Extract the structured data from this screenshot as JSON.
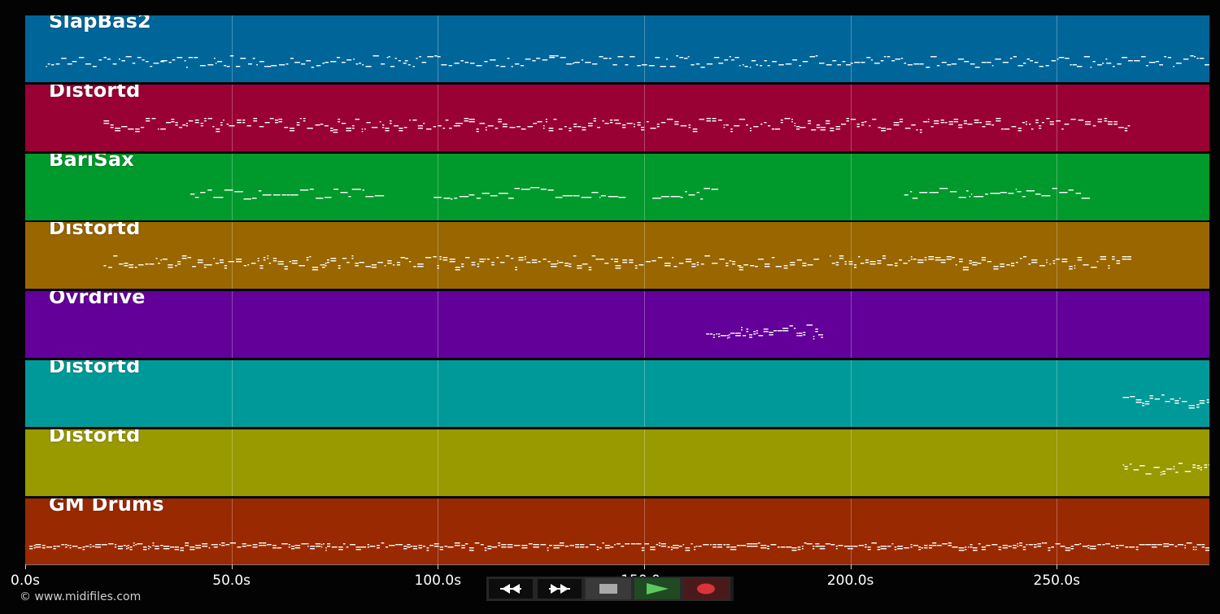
{
  "tracks": [
    {
      "name": "SlapBas2",
      "color": "#00669a"
    },
    {
      "name": "Distortd",
      "color": "#990033"
    },
    {
      "name": "BariSax",
      "color": "#00992c"
    },
    {
      "name": "Distortd",
      "color": "#996600"
    },
    {
      "name": "Ovrdrive",
      "color": "#620099"
    },
    {
      "name": "Distortd",
      "color": "#009999"
    },
    {
      "name": "Distortd",
      "color": "#999900"
    },
    {
      "name": "GM Drums",
      "color": "#992900"
    }
  ],
  "timeline": {
    "duration_s": 287,
    "tick_labels": [
      "0.0s",
      "50.0s",
      "100.0s",
      "150.0s",
      "200.0s",
      "250.0s"
    ],
    "tick_values": [
      0,
      50,
      100,
      150,
      200,
      250
    ]
  },
  "transport": {
    "buttons": [
      {
        "name": "rewind-button",
        "icon": "rewind-icon"
      },
      {
        "name": "fast-forward-button",
        "icon": "fast-forward-icon"
      },
      {
        "name": "stop-button",
        "icon": "stop-icon"
      },
      {
        "name": "play-button",
        "icon": "play-icon"
      },
      {
        "name": "record-button",
        "icon": "record-icon"
      }
    ]
  },
  "footer": {
    "copyright": "© www.midifiles.com"
  },
  "note_activity": [
    {
      "track": 0,
      "ranges": [
        [
          5,
          33
        ],
        [
          33,
          72
        ],
        [
          72,
          92
        ],
        [
          92,
          127
        ],
        [
          127,
          168
        ],
        [
          168,
          200
        ],
        [
          200,
          262
        ],
        [
          262,
          287
        ]
      ]
    },
    {
      "track": 1,
      "ranges": [
        [
          19,
          143
        ],
        [
          143,
          173
        ],
        [
          173,
          195
        ],
        [
          195,
          268
        ]
      ]
    },
    {
      "track": 2,
      "ranges": [
        [
          40,
          86
        ],
        [
          99,
          145
        ],
        [
          152,
          167
        ],
        [
          213,
          258
        ]
      ]
    },
    {
      "track": 3,
      "ranges": [
        [
          19,
          143
        ],
        [
          143,
          173
        ],
        [
          173,
          192
        ],
        [
          195,
          268
        ]
      ]
    },
    {
      "track": 4,
      "ranges": [
        [
          165,
          193
        ]
      ]
    },
    {
      "track": 5,
      "ranges": [
        [
          266,
          287
        ]
      ]
    },
    {
      "track": 6,
      "ranges": [
        [
          266,
          287
        ]
      ]
    },
    {
      "track": 7,
      "ranges": [
        [
          1,
          287
        ]
      ]
    }
  ]
}
